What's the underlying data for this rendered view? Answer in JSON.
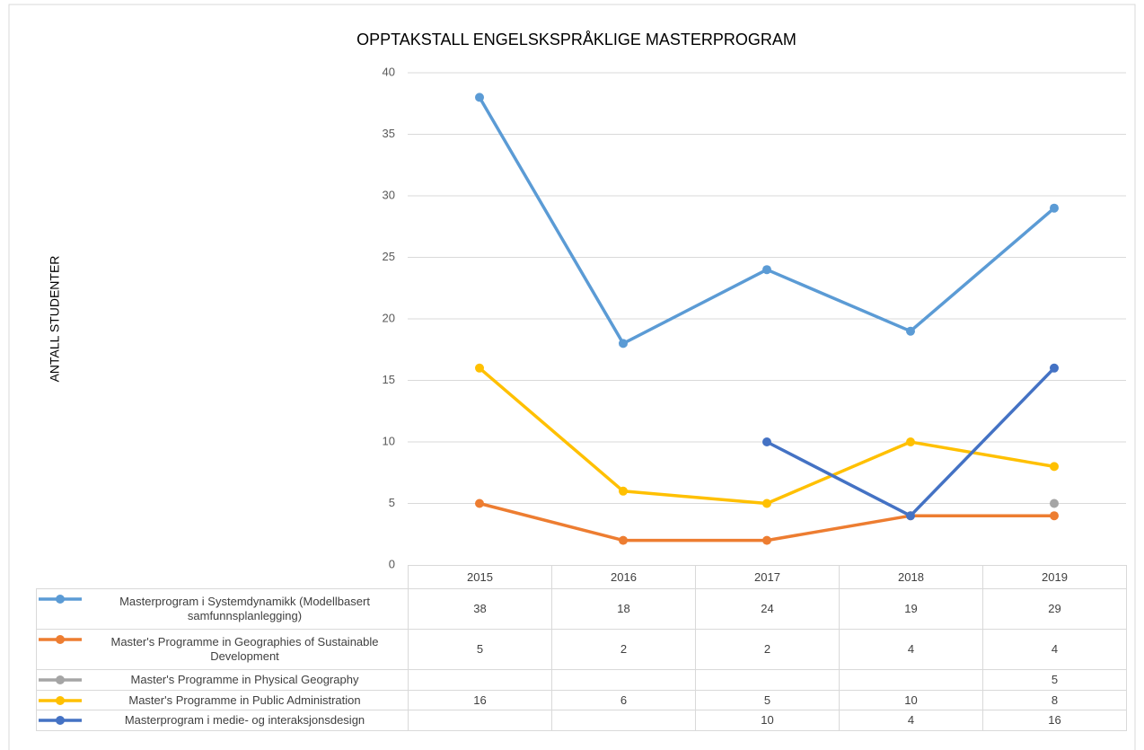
{
  "chart_data": {
    "type": "line",
    "title": "OPPTAKSTALL ENGELSKSPRÅKLIGE MASTERPROGRAM",
    "ylabel": "ANTALL STUDENTER",
    "categories": [
      "2015",
      "2016",
      "2017",
      "2018",
      "2019"
    ],
    "series": [
      {
        "name": "Masterprogram i Systemdynamikk (Modellbasert samfunnsplanlegging)",
        "color": "#5b9bd5",
        "values": [
          38,
          18,
          24,
          19,
          29
        ]
      },
      {
        "name": "Master's Programme in Geographies of Sustainable Development",
        "color": "#ed7d31",
        "values": [
          5,
          2,
          2,
          4,
          4
        ]
      },
      {
        "name": "Master's Programme in Physical Geography",
        "color": "#a5a5a5",
        "values": [
          null,
          null,
          null,
          null,
          5
        ]
      },
      {
        "name": "Master's Programme in Public Administration",
        "color": "#ffc000",
        "values": [
          16,
          6,
          5,
          10,
          8
        ]
      },
      {
        "name": "Masterprogram i medie- og interaksjonsdesign",
        "color": "#4472c4",
        "values": [
          null,
          null,
          10,
          4,
          16
        ]
      }
    ],
    "ylim": [
      0,
      40
    ],
    "yticks": [
      0,
      5,
      10,
      15,
      20,
      25,
      30,
      35,
      40
    ],
    "grid": true,
    "legend": "table"
  }
}
